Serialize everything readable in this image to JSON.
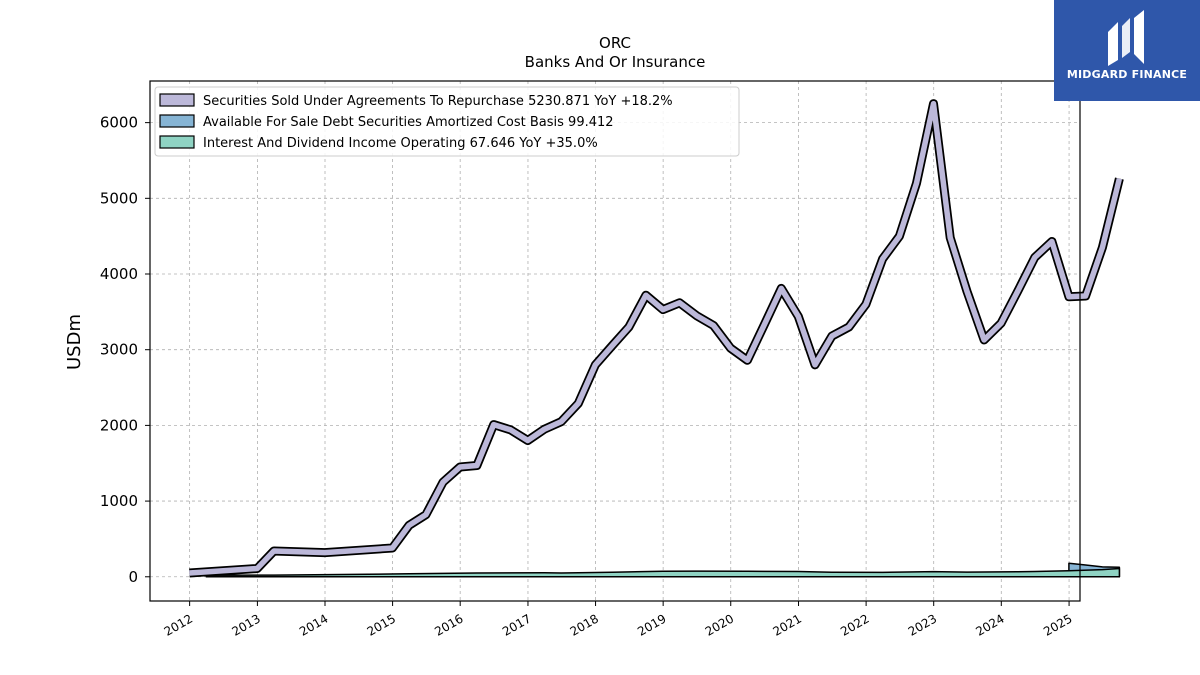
{
  "brand": {
    "name": "MIDGARD FINANCE",
    "bg_color": "#2f57aa"
  },
  "chart_data": {
    "type": "line",
    "title": "ORC",
    "subtitle": "Banks And Or Insurance",
    "ylabel": "USDm",
    "xlabel": "",
    "ylim": [
      -320,
      6550
    ],
    "xlim": [
      "2011-06-01",
      "2025-03-01"
    ],
    "x_ticks": [
      "2012",
      "2013",
      "2014",
      "2015",
      "2016",
      "2017",
      "2018",
      "2019",
      "2020",
      "2021",
      "2022",
      "2023",
      "2024",
      "2025"
    ],
    "y_ticks": [
      0,
      1000,
      2000,
      3000,
      4000,
      5000,
      6000
    ],
    "grid": true,
    "legend_position": "top-left",
    "series": [
      {
        "name": "Securities Sold Under Agreements To Repurchase",
        "legend_label": "Securities Sold Under Agreements To Repurchase  5230.871 YoY +18.2%",
        "color": "#bcb8d9",
        "style": "thick-line",
        "points": [
          [
            "2011-12-31",
            50
          ],
          [
            "2012-12-31",
            110
          ],
          [
            "2013-03-31",
            340
          ],
          [
            "2013-12-31",
            320
          ],
          [
            "2014-12-31",
            380
          ],
          [
            "2015-03-31",
            680
          ],
          [
            "2015-06-30",
            820
          ],
          [
            "2015-09-30",
            1250
          ],
          [
            "2015-12-31",
            1450
          ],
          [
            "2016-03-31",
            1470
          ],
          [
            "2016-06-30",
            2010
          ],
          [
            "2016-09-30",
            1940
          ],
          [
            "2016-12-31",
            1800
          ],
          [
            "2017-03-31",
            1950
          ],
          [
            "2017-06-30",
            2050
          ],
          [
            "2017-09-30",
            2290
          ],
          [
            "2017-12-31",
            2800
          ],
          [
            "2018-03-31",
            3050
          ],
          [
            "2018-06-30",
            3300
          ],
          [
            "2018-09-30",
            3720
          ],
          [
            "2018-12-31",
            3530
          ],
          [
            "2019-03-31",
            3620
          ],
          [
            "2019-06-30",
            3450
          ],
          [
            "2019-09-30",
            3320
          ],
          [
            "2019-12-31",
            3020
          ],
          [
            "2020-03-31",
            2860
          ],
          [
            "2020-06-30",
            3330
          ],
          [
            "2020-09-30",
            3810
          ],
          [
            "2020-12-31",
            3440
          ],
          [
            "2021-03-31",
            2800
          ],
          [
            "2021-06-30",
            3180
          ],
          [
            "2021-09-30",
            3300
          ],
          [
            "2021-12-31",
            3600
          ],
          [
            "2022-03-31",
            4200
          ],
          [
            "2022-06-30",
            4500
          ],
          [
            "2022-09-30",
            5200
          ],
          [
            "2022-12-31",
            6250
          ],
          [
            "2023-03-31",
            4480
          ],
          [
            "2023-06-30",
            3770
          ],
          [
            "2023-09-30",
            3130
          ],
          [
            "2023-12-31",
            3350
          ],
          [
            "2024-03-31",
            3780
          ],
          [
            "2024-06-30",
            4220
          ],
          [
            "2024-09-30",
            4430
          ],
          [
            "2024-12-31",
            3700
          ],
          [
            "2025-03-31",
            3710
          ],
          [
            "2025-06-30",
            4350
          ],
          [
            "2025-09-30",
            5260
          ]
        ]
      },
      {
        "name": "Available For Sale Debt Securities Amortized Cost Basis",
        "legend_label": "Available For Sale Debt Securities Amortized Cost Basis  99.412",
        "color": "#86b4d4",
        "style": "area",
        "points": [
          [
            "2024-12-31",
            180
          ],
          [
            "2025-03-31",
            155
          ],
          [
            "2025-06-30",
            130
          ],
          [
            "2025-09-30",
            125
          ]
        ]
      },
      {
        "name": "Interest And Dividend Income Operating",
        "legend_label": "Interest And Dividend Income Operating  67.646 YoY +35.0%",
        "color": "#8fd3c3",
        "style": "area",
        "points": [
          [
            "2012-03-31",
            20
          ],
          [
            "2013-03-31",
            22
          ],
          [
            "2014-03-31",
            30
          ],
          [
            "2015-03-31",
            40
          ],
          [
            "2016-03-31",
            50
          ],
          [
            "2017-03-31",
            52
          ],
          [
            "2017-06-30",
            50
          ],
          [
            "2018-03-31",
            60
          ],
          [
            "2018-12-31",
            72
          ],
          [
            "2019-06-30",
            75
          ],
          [
            "2020-03-31",
            72
          ],
          [
            "2020-12-31",
            70
          ],
          [
            "2021-06-30",
            60
          ],
          [
            "2022-03-31",
            58
          ],
          [
            "2022-12-31",
            68
          ],
          [
            "2023-06-30",
            62
          ],
          [
            "2024-03-31",
            66
          ],
          [
            "2024-06-30",
            70
          ],
          [
            "2024-12-31",
            80
          ],
          [
            "2025-06-30",
            95
          ],
          [
            "2025-09-30",
            110
          ]
        ]
      }
    ]
  }
}
